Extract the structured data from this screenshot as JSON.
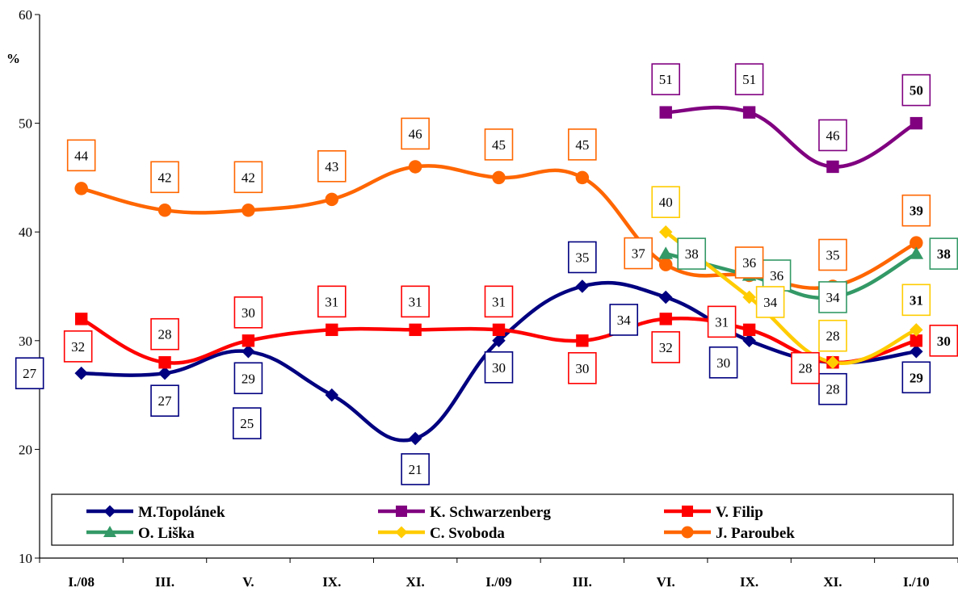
{
  "chart_data": {
    "type": "line",
    "ylabel": "%",
    "ylim": [
      10,
      60
    ],
    "yticks": [
      10,
      20,
      30,
      40,
      50,
      60
    ],
    "grid": false,
    "legend_placement": "bottom",
    "categories": [
      "I./08",
      "III.",
      "V.",
      "IX.",
      "XI.",
      "I./09",
      "III.",
      "VI.",
      "IX.",
      "XI.",
      "I./10"
    ],
    "series": [
      {
        "name": "M.Topolánek",
        "color": "#000080",
        "marker": "diamond",
        "values": [
          27,
          27,
          29,
          25,
          21,
          30,
          35,
          34,
          30,
          28,
          29
        ],
        "labels": [
          "27",
          "27",
          "29",
          "25",
          "21",
          "30",
          "35",
          "34",
          "30",
          "28",
          "29"
        ]
      },
      {
        "name": "K. Schwarzenberg",
        "color": "#800080",
        "marker": "square",
        "values": [
          null,
          null,
          null,
          null,
          null,
          null,
          null,
          51,
          51,
          46,
          50
        ],
        "labels": [
          null,
          null,
          null,
          null,
          null,
          null,
          null,
          "51",
          "51",
          "46",
          "50"
        ]
      },
      {
        "name": "V. Filip",
        "color": "#ff0000",
        "marker": "square",
        "values": [
          32,
          28,
          30,
          31,
          31,
          31,
          30,
          32,
          31,
          28,
          30
        ],
        "labels": [
          "32",
          "28",
          "30",
          "31",
          "31",
          "31",
          "30",
          "32",
          "31",
          "28",
          "30"
        ]
      },
      {
        "name": "O. Liška",
        "color": "#339966",
        "marker": "triangle",
        "values": [
          null,
          null,
          null,
          null,
          null,
          null,
          null,
          38,
          36,
          34,
          38
        ],
        "labels": [
          null,
          null,
          null,
          null,
          null,
          null,
          null,
          "38",
          "36",
          "34",
          "38"
        ]
      },
      {
        "name": "C. Svoboda",
        "color": "#ffcc00",
        "marker": "diamond",
        "values": [
          null,
          null,
          null,
          null,
          null,
          null,
          null,
          40,
          34,
          28,
          31
        ],
        "labels": [
          null,
          null,
          null,
          null,
          null,
          null,
          null,
          "40",
          "34",
          "28",
          "31"
        ]
      },
      {
        "name": "J. Paroubek",
        "color": "#ff6600",
        "marker": "circle",
        "values": [
          44,
          42,
          42,
          43,
          46,
          45,
          45,
          37,
          36,
          35,
          39
        ],
        "labels": [
          "44",
          "42",
          "42",
          "43",
          "46",
          "45",
          "45",
          "37",
          "36",
          "35",
          "39"
        ]
      }
    ]
  }
}
